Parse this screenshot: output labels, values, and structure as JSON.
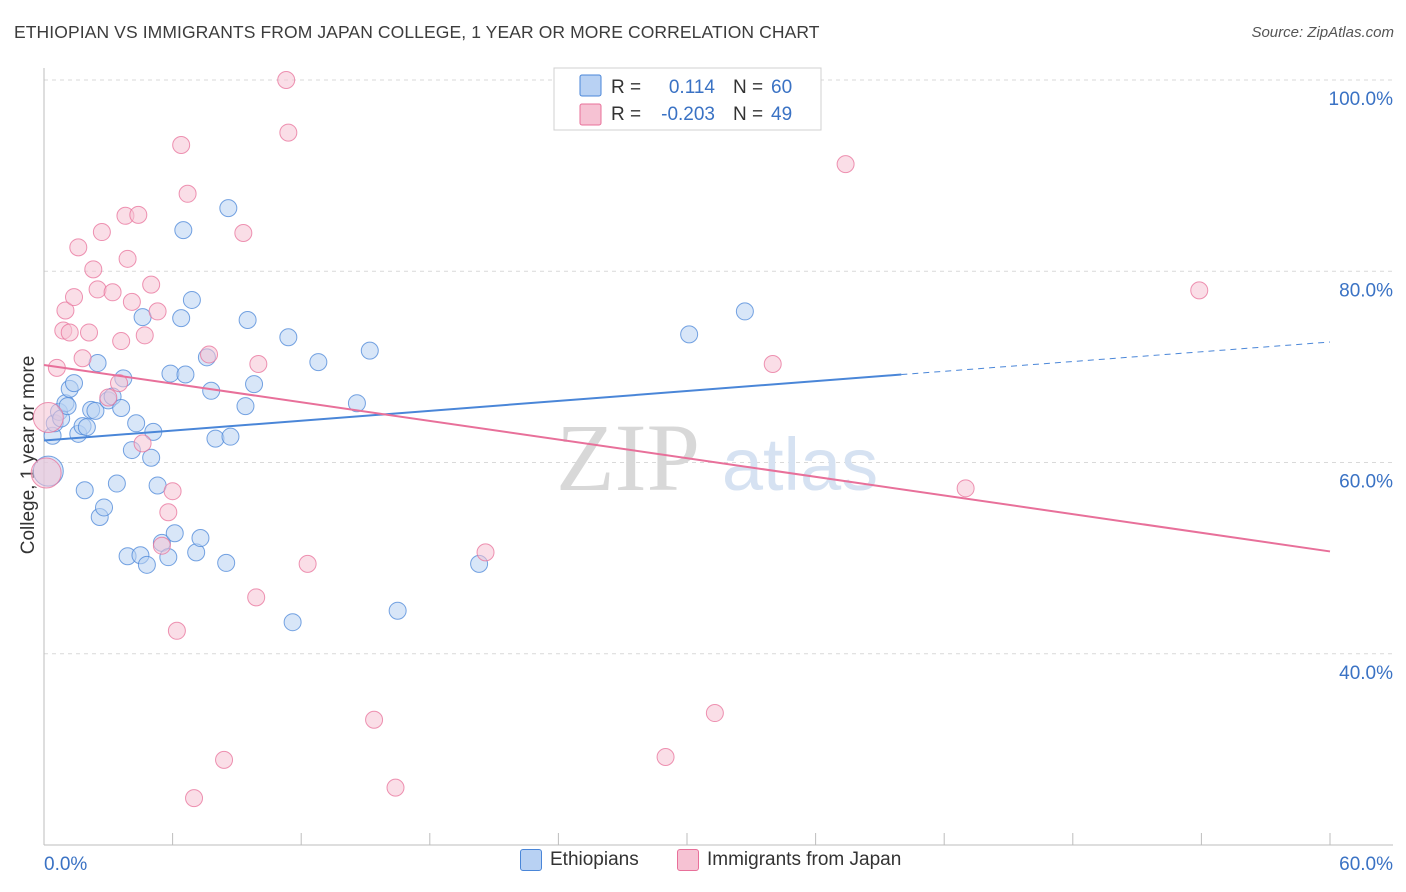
{
  "header": {
    "title": "ETHIOPIAN VS IMMIGRANTS FROM JAPAN COLLEGE, 1 YEAR OR MORE CORRELATION CHART",
    "source": "Source: ZipAtlas.com"
  },
  "colors": {
    "blue": "#4a86d8",
    "blue_fill": "#b8d1f3",
    "pink": "#e8709a",
    "pink_fill": "#f6c2d3",
    "axis_label": "#3a72c4",
    "grid": "#d9d9d9"
  },
  "watermark": {
    "zip": "ZIP",
    "atlas": "atlas"
  },
  "stats_box": {
    "rows": [
      {
        "r_label": "R =",
        "r_value": "0.114",
        "n_label": "N =",
        "n_value": "60"
      },
      {
        "r_label": "R =",
        "r_value": "-0.203",
        "n_label": "N =",
        "n_value": "49"
      }
    ]
  },
  "chart_data": {
    "type": "scatter",
    "title": "ETHIOPIAN VS IMMIGRANTS FROM JAPAN COLLEGE, 1 YEAR OR MORE CORRELATION CHART",
    "xlabel": "",
    "ylabel": "College, 1 year or more",
    "xlim": [
      0,
      60
    ],
    "ylim": [
      20,
      100
    ],
    "x_tick_labels": [
      "0.0%",
      "60.0%"
    ],
    "y_ticks": [
      40,
      60,
      80,
      100
    ],
    "y_tick_labels": [
      "40.0%",
      "60.0%",
      "80.0%",
      "100.0%"
    ],
    "grid": true,
    "legend_position": "bottom-center",
    "series": [
      {
        "name": "Ethiopians",
        "r": 0.114,
        "n": 60,
        "trend": {
          "x0": 0,
          "y0": 62.3,
          "x1": 40,
          "y1": 69.2,
          "dash_to_x": 60,
          "dash_to_y": 72.6
        },
        "points": [
          [
            0.2,
            59.1
          ],
          [
            0.4,
            62.8
          ],
          [
            0.5,
            64.1
          ],
          [
            0.7,
            65.3
          ],
          [
            0.8,
            64.6
          ],
          [
            1.0,
            66.2
          ],
          [
            1.1,
            65.9
          ],
          [
            1.2,
            67.7
          ],
          [
            1.4,
            68.3
          ],
          [
            1.6,
            63.0
          ],
          [
            1.8,
            63.8
          ],
          [
            1.9,
            57.1
          ],
          [
            2.0,
            63.7
          ],
          [
            2.2,
            65.5
          ],
          [
            2.4,
            65.4
          ],
          [
            2.5,
            70.4
          ],
          [
            2.6,
            54.3
          ],
          [
            2.8,
            55.3
          ],
          [
            3.0,
            66.5
          ],
          [
            3.2,
            66.9
          ],
          [
            3.4,
            57.8
          ],
          [
            3.6,
            65.7
          ],
          [
            3.7,
            68.8
          ],
          [
            3.9,
            50.2
          ],
          [
            4.1,
            61.3
          ],
          [
            4.3,
            64.1
          ],
          [
            4.5,
            50.3
          ],
          [
            4.6,
            75.2
          ],
          [
            4.8,
            49.3
          ],
          [
            5.0,
            60.5
          ],
          [
            5.1,
            63.2
          ],
          [
            5.3,
            57.6
          ],
          [
            5.5,
            51.6
          ],
          [
            5.8,
            50.1
          ],
          [
            5.9,
            69.3
          ],
          [
            6.1,
            52.6
          ],
          [
            6.4,
            75.1
          ],
          [
            6.5,
            84.3
          ],
          [
            6.6,
            69.2
          ],
          [
            6.9,
            77.0
          ],
          [
            7.1,
            50.6
          ],
          [
            7.3,
            52.1
          ],
          [
            7.6,
            71.0
          ],
          [
            7.8,
            67.5
          ],
          [
            8.0,
            62.5
          ],
          [
            8.5,
            49.5
          ],
          [
            8.6,
            86.6
          ],
          [
            8.7,
            62.7
          ],
          [
            9.4,
            65.9
          ],
          [
            9.5,
            74.9
          ],
          [
            9.8,
            68.2
          ],
          [
            11.4,
            73.1
          ],
          [
            11.6,
            43.3
          ],
          [
            12.8,
            70.5
          ],
          [
            14.6,
            66.2
          ],
          [
            15.2,
            71.7
          ],
          [
            16.5,
            44.5
          ],
          [
            20.3,
            49.4
          ],
          [
            30.1,
            73.4
          ],
          [
            32.7,
            75.8
          ]
        ]
      },
      {
        "name": "Immigrants from Japan",
        "r": -0.203,
        "n": 49,
        "trend": {
          "x0": 0,
          "y0": 70.2,
          "x1": 60,
          "y1": 50.7
        },
        "points": [
          [
            0.1,
            58.9
          ],
          [
            0.2,
            64.7
          ],
          [
            0.6,
            69.9
          ],
          [
            0.9,
            73.8
          ],
          [
            1.0,
            75.9
          ],
          [
            1.2,
            73.6
          ],
          [
            1.4,
            77.3
          ],
          [
            1.6,
            82.5
          ],
          [
            1.8,
            70.9
          ],
          [
            2.1,
            73.6
          ],
          [
            2.3,
            80.2
          ],
          [
            2.5,
            78.1
          ],
          [
            2.7,
            84.1
          ],
          [
            3.0,
            66.8
          ],
          [
            3.2,
            77.8
          ],
          [
            3.5,
            68.3
          ],
          [
            3.6,
            72.7
          ],
          [
            3.8,
            85.8
          ],
          [
            3.9,
            81.3
          ],
          [
            4.1,
            76.8
          ],
          [
            4.4,
            85.9
          ],
          [
            4.6,
            62.0
          ],
          [
            4.7,
            73.3
          ],
          [
            5.0,
            78.6
          ],
          [
            5.3,
            75.8
          ],
          [
            5.5,
            51.3
          ],
          [
            5.8,
            54.8
          ],
          [
            6.0,
            57.0
          ],
          [
            6.2,
            42.4
          ],
          [
            6.4,
            93.2
          ],
          [
            6.7,
            88.1
          ],
          [
            7.0,
            24.9
          ],
          [
            7.7,
            71.3
          ],
          [
            8.4,
            28.9
          ],
          [
            9.3,
            84.0
          ],
          [
            9.9,
            45.9
          ],
          [
            10.0,
            70.3
          ],
          [
            11.3,
            100.0
          ],
          [
            11.4,
            94.5
          ],
          [
            12.3,
            49.4
          ],
          [
            15.4,
            33.1
          ],
          [
            16.4,
            26.0
          ],
          [
            20.6,
            50.6
          ],
          [
            29.0,
            29.2
          ],
          [
            31.3,
            33.8
          ],
          [
            34.0,
            70.3
          ],
          [
            37.4,
            91.2
          ],
          [
            43.0,
            57.3
          ],
          [
            53.9,
            78.0
          ]
        ]
      }
    ]
  },
  "legend": {
    "items": [
      {
        "label": "Ethiopians"
      },
      {
        "label": "Immigrants from Japan"
      }
    ]
  }
}
